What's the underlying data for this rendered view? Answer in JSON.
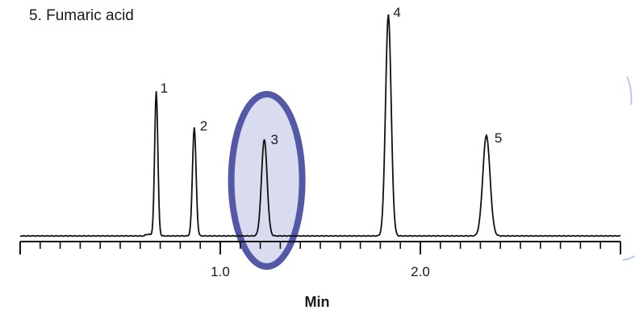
{
  "chart_data": {
    "type": "line",
    "legend": {
      "visible_entry": "5. Fumaric acid"
    },
    "xlabel": "Min",
    "xlim": [
      0.0,
      3.0
    ],
    "x_tick_labels": [
      {
        "value": 1.0,
        "label": "1.0"
      },
      {
        "value": 2.0,
        "label": "2.0"
      }
    ],
    "baseline": 0.0,
    "peaks": [
      {
        "label": "1",
        "x": 0.68,
        "height": 180,
        "width": 0.008
      },
      {
        "label": "2",
        "x": 0.87,
        "height": 135,
        "width": 0.009
      },
      {
        "label": "3",
        "x": 1.22,
        "height": 120,
        "width": 0.014
      },
      {
        "label": "4",
        "x": 1.84,
        "height": 275,
        "width": 0.014
      },
      {
        "label": "5",
        "x": 2.33,
        "height": 125,
        "width": 0.018
      }
    ],
    "highlight": {
      "peak": "3",
      "shape": "ellipse",
      "color": "#5558a6",
      "fill": "#d9dbee"
    },
    "colors": {
      "trace": "#111111",
      "axis": "#111111"
    }
  }
}
